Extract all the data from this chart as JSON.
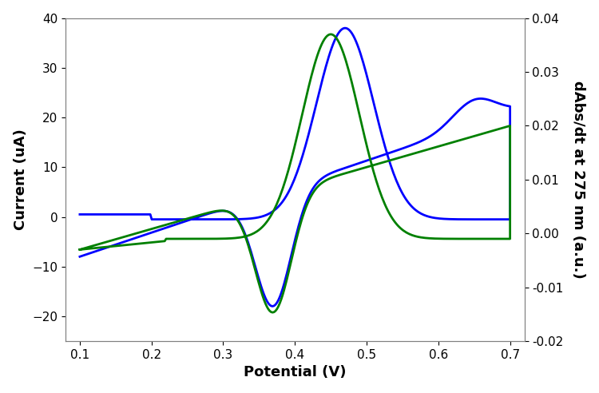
{
  "title": "",
  "xlabel": "Potential (V)",
  "ylabel_left": "Current (uA)",
  "ylabel_right": "dAbs/dt at 275 nm (a.u.)",
  "xlim": [
    0.08,
    0.72
  ],
  "ylim_left": [
    -25,
    40
  ],
  "ylim_right": [
    -0.02,
    0.04
  ],
  "xticks": [
    0.1,
    0.2,
    0.3,
    0.4,
    0.5,
    0.6,
    0.7
  ],
  "yticks_left": [
    -20,
    -10,
    0,
    10,
    20,
    30,
    40
  ],
  "yticks_right": [
    -0.02,
    -0.01,
    0.0,
    0.01,
    0.02,
    0.03,
    0.04
  ],
  "blue_color": "#0000FF",
  "green_color": "#008000",
  "linewidth": 2.0,
  "bg_color": "#ffffff",
  "font_size_label": 13,
  "font_size_tick": 11
}
